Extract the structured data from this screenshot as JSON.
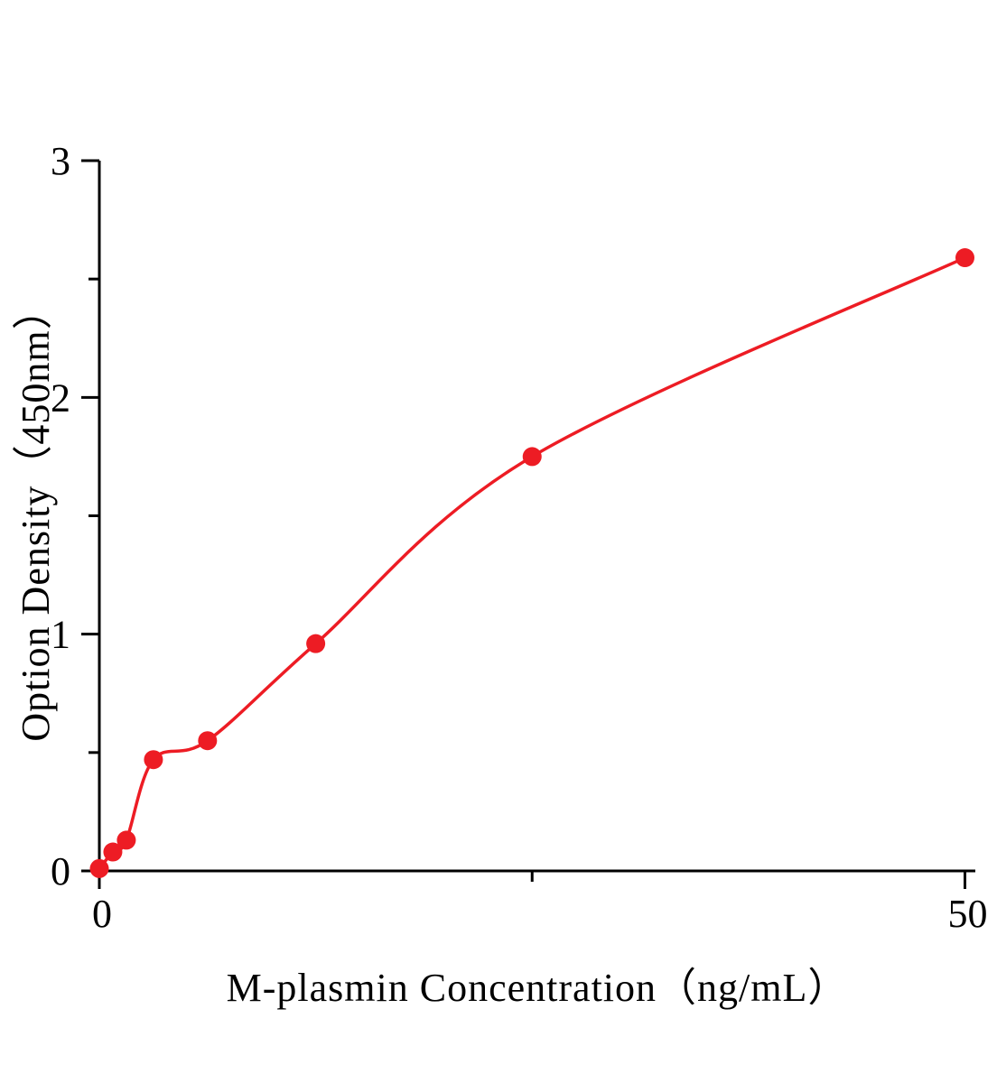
{
  "page": {
    "background": "#ffffff"
  },
  "chart_data": {
    "type": "scatter",
    "title": "",
    "xlabel": "M-plasmin Concentration（ng/mL）",
    "ylabel": "Option Density（450nm）",
    "x": [
      0,
      0.78,
      1.56,
      3.125,
      6.25,
      12.5,
      25,
      50
    ],
    "y": [
      0.01,
      0.08,
      0.13,
      0.47,
      0.55,
      0.96,
      1.75,
      2.59
    ],
    "fit": "smooth saturating standard curve through points",
    "xlim": [
      0,
      50.6
    ],
    "ylim": [
      0,
      3
    ],
    "x_major_ticks": [
      0,
      50
    ],
    "x_major_tick_labels": [
      "0",
      "50"
    ],
    "x_minor_ticks": [
      25
    ],
    "y_major_ticks": [
      0,
      1,
      2,
      3
    ],
    "y_major_tick_labels": [
      "0",
      "1",
      "2",
      "3"
    ],
    "y_minor_ticks": [
      0.5,
      1.5,
      2.5
    ],
    "grid": false,
    "legend": null,
    "point_color": "#ed1c24",
    "line_color": "#ed1c24",
    "axis_color": "#000000"
  }
}
